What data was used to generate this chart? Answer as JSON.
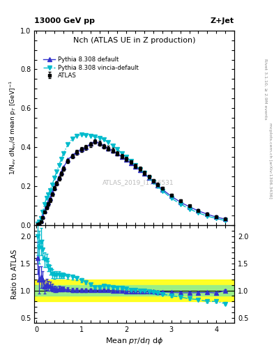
{
  "title_top": "13000 GeV pp",
  "title_right": "Z+Jet",
  "plot_title": "Nch (ATLAS UE in Z production)",
  "watermark": "ATLAS_2019_I1736531",
  "ylabel_main": "1/N$_{ev}$ dN$_{ev}$/d mean p$_{T}$ [GeV]$^{-1}$",
  "ylabel_ratio": "Ratio to ATLAS",
  "xlabel": "Mean $p_{T}$/d$\\eta$ d$\\phi$",
  "right_label_top": "Rivet 3.1.10, ≥ 2.9M events",
  "right_label_bottom": "mcplots.cern.ch [arXiv:1306.3436]",
  "atlas_x": [
    0.02,
    0.06,
    0.1,
    0.14,
    0.18,
    0.22,
    0.26,
    0.3,
    0.35,
    0.4,
    0.45,
    0.5,
    0.55,
    0.6,
    0.7,
    0.8,
    0.9,
    1.0,
    1.1,
    1.2,
    1.3,
    1.4,
    1.5,
    1.6,
    1.7,
    1.8,
    1.9,
    2.0,
    2.1,
    2.2,
    2.3,
    2.4,
    2.5,
    2.6,
    2.7,
    2.8,
    3.0,
    3.2,
    3.4,
    3.6,
    3.8,
    4.0,
    4.2
  ],
  "atlas_y": [
    0.005,
    0.01,
    0.02,
    0.04,
    0.07,
    0.09,
    0.11,
    0.13,
    0.16,
    0.19,
    0.215,
    0.24,
    0.265,
    0.29,
    0.33,
    0.355,
    0.375,
    0.39,
    0.4,
    0.415,
    0.43,
    0.42,
    0.405,
    0.395,
    0.385,
    0.37,
    0.355,
    0.34,
    0.325,
    0.305,
    0.29,
    0.27,
    0.25,
    0.23,
    0.21,
    0.19,
    0.155,
    0.125,
    0.1,
    0.078,
    0.06,
    0.045,
    0.033
  ],
  "atlas_yerr": [
    0.001,
    0.002,
    0.003,
    0.005,
    0.007,
    0.008,
    0.009,
    0.01,
    0.01,
    0.01,
    0.01,
    0.01,
    0.01,
    0.011,
    0.011,
    0.011,
    0.012,
    0.012,
    0.012,
    0.012,
    0.012,
    0.012,
    0.012,
    0.012,
    0.012,
    0.011,
    0.011,
    0.011,
    0.01,
    0.01,
    0.01,
    0.01,
    0.009,
    0.009,
    0.009,
    0.008,
    0.008,
    0.007,
    0.006,
    0.006,
    0.005,
    0.005,
    0.004
  ],
  "pythia_x": [
    0.02,
    0.06,
    0.1,
    0.14,
    0.18,
    0.22,
    0.26,
    0.3,
    0.35,
    0.4,
    0.45,
    0.5,
    0.55,
    0.6,
    0.7,
    0.8,
    0.9,
    1.0,
    1.1,
    1.2,
    1.3,
    1.4,
    1.5,
    1.6,
    1.7,
    1.8,
    1.9,
    2.0,
    2.1,
    2.2,
    2.3,
    2.4,
    2.5,
    2.6,
    2.7,
    2.8,
    3.0,
    3.2,
    3.4,
    3.6,
    3.8,
    4.0,
    4.2
  ],
  "pythia_y": [
    0.008,
    0.012,
    0.025,
    0.048,
    0.075,
    0.1,
    0.12,
    0.14,
    0.168,
    0.195,
    0.22,
    0.248,
    0.272,
    0.298,
    0.338,
    0.36,
    0.378,
    0.392,
    0.402,
    0.418,
    0.432,
    0.422,
    0.408,
    0.396,
    0.383,
    0.368,
    0.352,
    0.336,
    0.32,
    0.3,
    0.285,
    0.265,
    0.245,
    0.225,
    0.205,
    0.185,
    0.15,
    0.12,
    0.096,
    0.075,
    0.058,
    0.043,
    0.033
  ],
  "vincia_x": [
    0.02,
    0.06,
    0.1,
    0.14,
    0.18,
    0.22,
    0.26,
    0.3,
    0.35,
    0.4,
    0.45,
    0.5,
    0.55,
    0.6,
    0.7,
    0.8,
    0.9,
    1.0,
    1.1,
    1.2,
    1.3,
    1.4,
    1.5,
    1.6,
    1.7,
    1.8,
    1.9,
    2.0,
    2.1,
    2.2,
    2.3,
    2.4,
    2.5,
    2.6,
    2.7,
    2.8,
    3.0,
    3.2,
    3.4,
    3.6,
    3.8,
    4.0,
    4.2
  ],
  "vincia_y": [
    0.01,
    0.018,
    0.038,
    0.07,
    0.11,
    0.14,
    0.16,
    0.18,
    0.21,
    0.245,
    0.278,
    0.31,
    0.34,
    0.37,
    0.415,
    0.445,
    0.46,
    0.465,
    0.462,
    0.46,
    0.455,
    0.448,
    0.44,
    0.425,
    0.41,
    0.39,
    0.37,
    0.35,
    0.33,
    0.308,
    0.288,
    0.268,
    0.245,
    0.222,
    0.2,
    0.178,
    0.14,
    0.11,
    0.085,
    0.065,
    0.048,
    0.036,
    0.025
  ],
  "ratio_pythia_y": [
    1.6,
    1.2,
    1.25,
    1.2,
    1.07,
    1.11,
    1.09,
    1.08,
    1.05,
    1.03,
    1.02,
    1.03,
    1.03,
    1.03,
    1.02,
    1.01,
    1.01,
    1.005,
    1.005,
    1.007,
    1.005,
    1.005,
    1.007,
    1.003,
    0.995,
    0.995,
    0.992,
    0.988,
    0.985,
    0.984,
    0.983,
    0.981,
    0.98,
    0.978,
    0.976,
    0.974,
    0.968,
    0.96,
    0.96,
    0.962,
    0.967,
    0.956,
    1.0
  ],
  "ratio_vincia_y": [
    2.0,
    1.8,
    1.9,
    1.75,
    1.57,
    1.56,
    1.45,
    1.38,
    1.31,
    1.29,
    1.29,
    1.29,
    1.28,
    1.28,
    1.26,
    1.25,
    1.23,
    1.19,
    1.155,
    1.11,
    1.06,
    1.067,
    1.086,
    1.076,
    1.065,
    1.054,
    1.042,
    1.029,
    1.015,
    1.01,
    0.993,
    0.993,
    0.98,
    0.965,
    0.952,
    0.937,
    0.903,
    0.88,
    0.85,
    0.833,
    0.8,
    0.8,
    0.758
  ],
  "ratio_pythia_err": [
    0.3,
    0.25,
    0.2,
    0.15,
    0.12,
    0.1,
    0.09,
    0.08,
    0.07,
    0.06,
    0.055,
    0.05,
    0.048,
    0.045,
    0.04,
    0.038,
    0.035,
    0.032,
    0.03,
    0.028,
    0.027,
    0.026,
    0.025,
    0.025,
    0.025,
    0.024,
    0.024,
    0.023,
    0.023,
    0.022,
    0.022,
    0.022,
    0.021,
    0.021,
    0.021,
    0.02,
    0.02,
    0.02,
    0.02,
    0.02,
    0.02,
    0.02,
    0.02
  ],
  "ratio_vincia_err": [
    0.35,
    0.3,
    0.25,
    0.18,
    0.14,
    0.12,
    0.1,
    0.09,
    0.08,
    0.07,
    0.065,
    0.06,
    0.055,
    0.05,
    0.045,
    0.042,
    0.038,
    0.035,
    0.032,
    0.03,
    0.028,
    0.027,
    0.026,
    0.025,
    0.025,
    0.024,
    0.024,
    0.023,
    0.023,
    0.022,
    0.022,
    0.022,
    0.021,
    0.021,
    0.021,
    0.02,
    0.02,
    0.02,
    0.02,
    0.02,
    0.02,
    0.02,
    0.02
  ],
  "atlas_color": "#000000",
  "pythia_color": "#3333cc",
  "vincia_color": "#00bbcc",
  "ylim_main": [
    0,
    1.0
  ],
  "ylim_ratio": [
    0.4,
    2.2
  ],
  "xlim": [
    -0.05,
    4.4
  ],
  "yticks_main": [
    0.0,
    0.2,
    0.4,
    0.6,
    0.8,
    1.0
  ],
  "yticks_ratio": [
    0.5,
    1.0,
    1.5,
    2.0
  ],
  "xticks": [
    0,
    1,
    2,
    3,
    4
  ]
}
